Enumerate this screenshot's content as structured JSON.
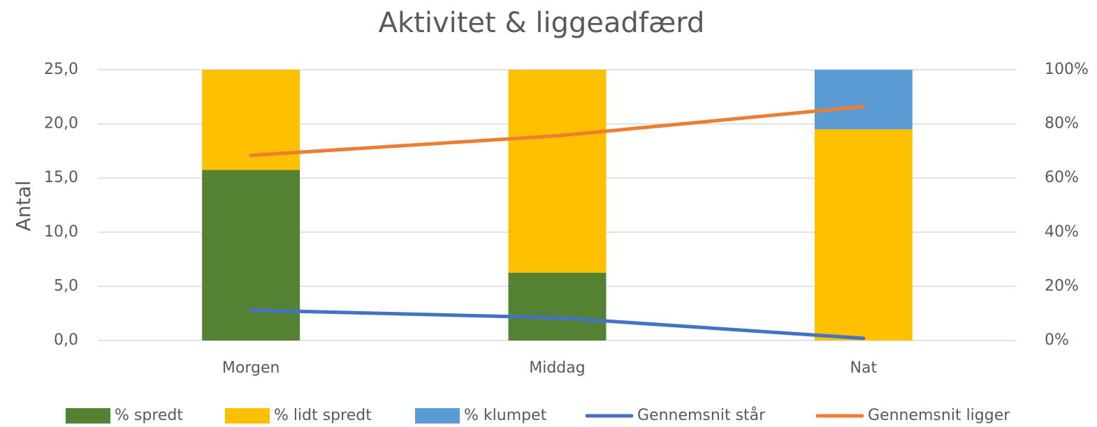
{
  "chart_data": {
    "type": "combo",
    "title": "Aktivitet & liggeadfærd",
    "y_label": "Antal",
    "stacked": true,
    "grid": true,
    "categories": [
      "Morgen",
      "Middag",
      "Nat"
    ],
    "series": [
      {
        "name": "% spredt",
        "type": "bar",
        "axis": "y2",
        "color": "#548235",
        "values": [
          63,
          25,
          0
        ]
      },
      {
        "name": "% lidt spredt",
        "type": "bar",
        "axis": "y2",
        "color": "#ffc000",
        "values": [
          37,
          75,
          78
        ]
      },
      {
        "name": "% klumpet",
        "type": "bar",
        "axis": "y2",
        "color": "#5b9bd5",
        "values": [
          0,
          0,
          22
        ]
      },
      {
        "name": "Gennemsnit  står",
        "type": "line",
        "axis": "y",
        "color": "#4472c4",
        "values": [
          2.8,
          2.1,
          0.2
        ]
      },
      {
        "name": "Gennemsnit ligger",
        "type": "line",
        "axis": "y",
        "color": "#ed7d31",
        "values": [
          17.1,
          18.9,
          21.6
        ]
      }
    ],
    "ylim": [
      0,
      25
    ],
    "yticks": [
      {
        "value": 0,
        "label": "0,0"
      },
      {
        "value": 5,
        "label": "5,0"
      },
      {
        "value": 10,
        "label": "10,0"
      },
      {
        "value": 15,
        "label": "15,0"
      },
      {
        "value": 20,
        "label": "20,0"
      },
      {
        "value": 25,
        "label": "25,0"
      }
    ],
    "y2lim": [
      0,
      100
    ],
    "y2ticks": [
      {
        "value": 0,
        "label": "0%"
      },
      {
        "value": 20,
        "label": "20%"
      },
      {
        "value": 40,
        "label": "40%"
      },
      {
        "value": 60,
        "label": "60%"
      },
      {
        "value": 80,
        "label": "80%"
      },
      {
        "value": 100,
        "label": "100%"
      }
    ]
  }
}
